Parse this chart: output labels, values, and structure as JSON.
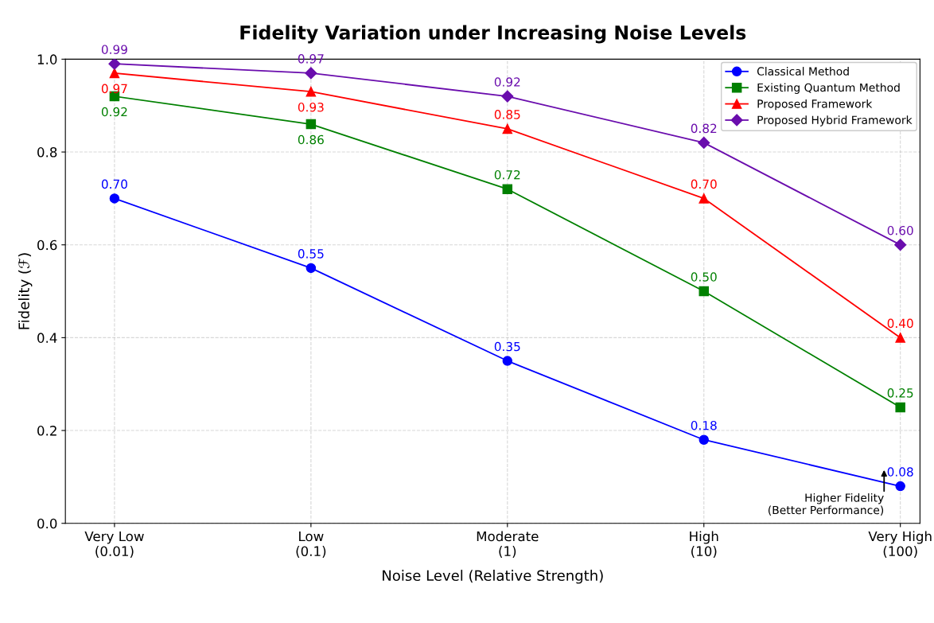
{
  "chart_data": {
    "type": "line",
    "title": "Fidelity Variation under Increasing Noise Levels",
    "xlabel": "Noise Level (Relative Strength)",
    "ylabel": "Fidelity (ℱ)",
    "categories": [
      "Very Low\n(0.01)",
      "Low\n(0.1)",
      "Moderate\n(1)",
      "High\n(10)",
      "Very High\n(100)"
    ],
    "series": [
      {
        "name": "Classical Method",
        "color": "#0000ff",
        "marker": "circle",
        "values": [
          0.7,
          0.55,
          0.35,
          0.18,
          0.08
        ],
        "value_labels": [
          "0.70",
          "0.55",
          "0.35",
          "0.18",
          "0.08"
        ]
      },
      {
        "name": "Existing Quantum Method",
        "color": "#008000",
        "marker": "square",
        "values": [
          0.92,
          0.86,
          0.72,
          0.5,
          0.25
        ],
        "value_labels": [
          "0.92",
          "0.86",
          "0.72",
          "0.50",
          "0.25"
        ]
      },
      {
        "name": "Proposed Framework",
        "color": "#ff0000",
        "marker": "triangle",
        "values": [
          0.97,
          0.93,
          0.85,
          0.7,
          0.4
        ],
        "value_labels": [
          "0.97",
          "0.93",
          "0.85",
          "0.70",
          "0.40"
        ]
      },
      {
        "name": "Proposed Hybrid Framework",
        "color": "#6a0dad",
        "marker": "diamond",
        "values": [
          0.99,
          0.97,
          0.92,
          0.82,
          0.6
        ],
        "value_labels": [
          "0.99",
          "0.97",
          "0.92",
          "0.82",
          "0.60"
        ]
      }
    ],
    "ylim": [
      0.0,
      1.0
    ],
    "yticks": [
      {
        "value": 0.0,
        "label": "0.0"
      },
      0.2,
      0.4,
      0.6,
      0.8,
      {
        "value": 1.0,
        "label": "1.0"
      }
    ],
    "grid": true,
    "legend": "top right",
    "annotations": [
      "Higher Fidelity\n(Better Performance)"
    ]
  }
}
